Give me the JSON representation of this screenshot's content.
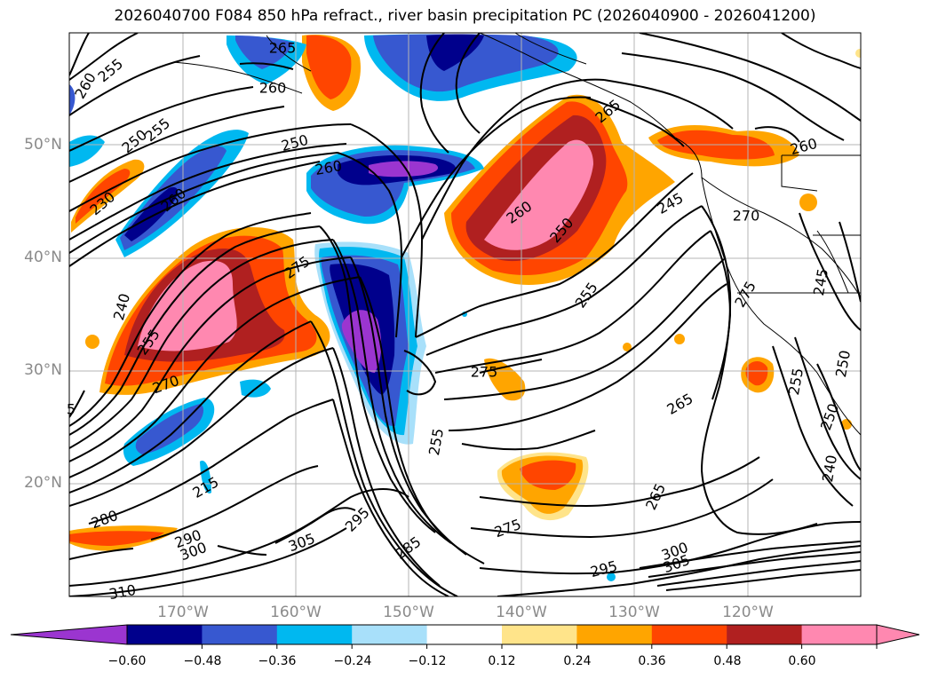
{
  "title": "2026040700 F084 850 hPa refract., river basin precipitation PC (2026040900 - 2026041200)",
  "axes": {
    "lat_ticks": [
      "50°N",
      "40°N",
      "30°N",
      "20°N"
    ],
    "lon_ticks": [
      "170°W",
      "160°W",
      "150°W",
      "140°W",
      "130°W",
      "120°W"
    ]
  },
  "colorbar": {
    "tick_labels": [
      "−0.60",
      "−0.48",
      "−0.36",
      "−0.24",
      "−0.12",
      "0.12",
      "0.24",
      "0.36",
      "0.48",
      "0.60"
    ],
    "colors": [
      "#9b35d0",
      "#00008c",
      "#3758d0",
      "#00b8f0",
      "#a8e0fa",
      "#ffffff",
      "#ffe48a",
      "#ffa500",
      "#ff4500",
      "#b02020",
      "#ff88b0",
      "#ff88b0"
    ]
  },
  "contour_labels": [
    "265",
    "260",
    "255",
    "260",
    "250",
    "255",
    "250",
    "260",
    "230",
    "260",
    "275",
    "240",
    "255",
    "270",
    "275",
    "215",
    "280",
    "290",
    "300",
    "305",
    "310",
    "295",
    "285",
    "275",
    "255",
    "255",
    "265",
    "245",
    "265",
    "250",
    "260",
    "250",
    "270",
    "275",
    "265",
    "260",
    "295",
    "305",
    "300",
    "255",
    "250",
    "245",
    "240",
    "5"
  ],
  "shading_colors": {
    "pink": "#ff88b0",
    "dark_red": "#b02020",
    "red": "#ff4500",
    "orange": "#ffa500",
    "yellow": "#ffe48a",
    "purple": "#9b35d0",
    "navy": "#00008c",
    "blue": "#3758d0",
    "cyan": "#00b8f0",
    "light_blue": "#a8e0fa"
  }
}
